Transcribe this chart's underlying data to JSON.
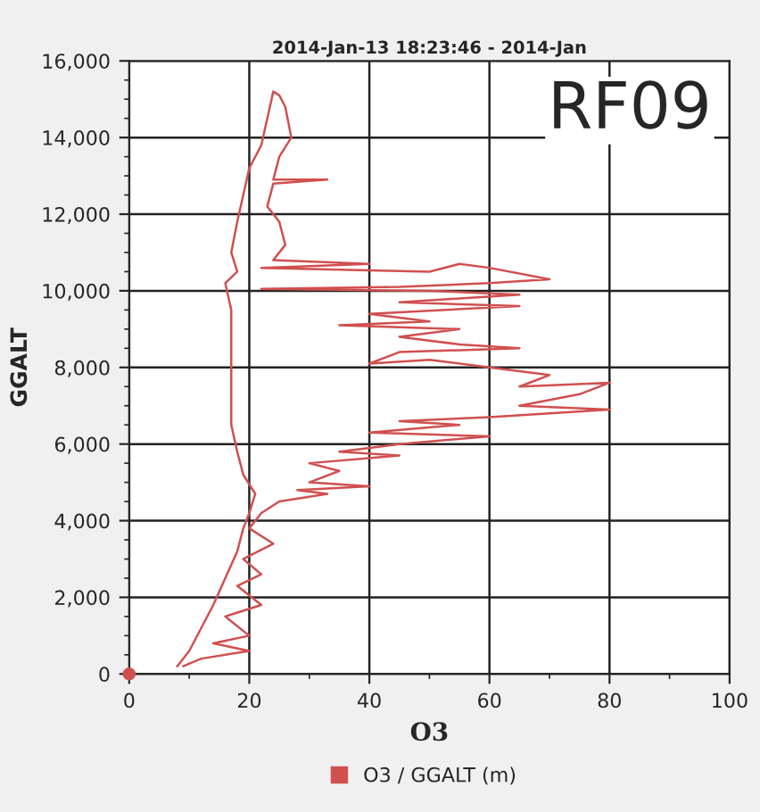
{
  "chart_data": {
    "type": "line",
    "title": "2014-Jan-13 18:23:46 - 2014-Jan",
    "xlabel": "O3",
    "ylabel": "GGALT",
    "annotations": [
      "RF09"
    ],
    "xlim": [
      0,
      100
    ],
    "xticks": [
      0,
      20,
      40,
      60,
      80,
      100
    ],
    "ylim": [
      0,
      16000
    ],
    "yticks": [
      {
        "value": 0,
        "label": "0"
      },
      {
        "value": 2000,
        "label": "2,000"
      },
      {
        "value": 4000,
        "label": "4,000"
      },
      {
        "value": 6000,
        "label": "6,000"
      },
      {
        "value": 8000,
        "label": "8,000"
      },
      {
        "value": 10000,
        "label": "10,000"
      },
      {
        "value": 12000,
        "label": "12,000"
      },
      {
        "value": 14000,
        "label": "14,000"
      },
      {
        "value": 16000,
        "label": "16,000"
      }
    ],
    "grid": true,
    "legend": "bottom",
    "marker": "none",
    "line_style": "solid",
    "series": [
      {
        "name": "O3 / GGALT (m)",
        "color": "#d05050",
        "x": [
          8,
          10,
          12,
          14,
          16,
          18,
          19,
          20,
          21,
          19,
          18,
          17,
          17,
          17,
          17,
          16,
          18,
          17,
          18,
          19,
          20,
          22,
          23,
          24,
          25,
          26,
          27,
          25,
          24,
          33,
          24,
          23,
          25,
          26,
          24,
          40,
          22,
          50,
          55,
          60,
          70,
          60,
          45,
          22,
          50,
          65,
          55,
          45,
          65,
          40,
          50,
          35,
          55,
          45,
          55,
          65,
          45,
          40,
          50,
          60,
          70,
          65,
          80,
          75,
          65,
          80,
          60,
          45,
          55,
          40,
          60,
          45,
          40,
          35,
          45,
          30,
          35,
          30,
          40,
          28,
          33,
          25,
          22,
          20,
          24,
          19,
          22,
          18,
          22,
          16,
          20,
          14,
          20,
          12,
          9
        ],
        "values": [
          200,
          600,
          1200,
          1800,
          2500,
          3200,
          3800,
          4200,
          4700,
          5200,
          5800,
          6500,
          7500,
          8500,
          9500,
          10200,
          10500,
          11000,
          11800,
          12500,
          13200,
          13800,
          14500,
          15200,
          15100,
          14800,
          14000,
          13500,
          12900,
          12900,
          12800,
          12200,
          11800,
          11200,
          10800,
          10700,
          10600,
          10500,
          10700,
          10600,
          10300,
          10200,
          10100,
          10050,
          10000,
          9900,
          9800,
          9700,
          9600,
          9400,
          9200,
          9100,
          9000,
          8800,
          8600,
          8500,
          8400,
          8100,
          8200,
          8000,
          7800,
          7500,
          7600,
          7300,
          7000,
          6900,
          6700,
          6600,
          6500,
          6300,
          6200,
          6000,
          5900,
          5800,
          5700,
          5500,
          5300,
          5000,
          4900,
          4800,
          4700,
          4500,
          4200,
          3800,
          3400,
          3000,
          2600,
          2300,
          1800,
          1500,
          1000,
          800,
          600,
          400,
          200
        ]
      },
      {
        "type": "scatter",
        "color": "#d05050",
        "marker": "circle",
        "x": [
          0
        ],
        "values": [
          0
        ]
      }
    ]
  }
}
